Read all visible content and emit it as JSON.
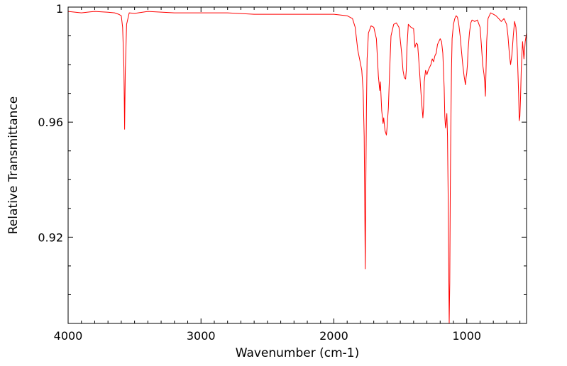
{
  "chart_data": {
    "type": "line",
    "title": "",
    "xlabel": "Wavenumber (cm-1)",
    "ylabel": "Relative Transmittance",
    "xlim": [
      4000,
      550
    ],
    "ylim": [
      0.89,
      1.0
    ],
    "x_reversed": true,
    "grid": false,
    "legend": "none",
    "x_ticks": [
      4000,
      3000,
      2000,
      1000
    ],
    "x_tick_labels": [
      "4000",
      "3000",
      "2000",
      "1000"
    ],
    "y_ticks": [
      1.0,
      0.96,
      0.92
    ],
    "y_tick_labels": [
      "1",
      "0.96",
      "0.92"
    ],
    "series": [
      {
        "color": "#ff0000",
        "x": [
          4000,
          3900,
          3800,
          3700,
          3650,
          3620,
          3600,
          3590,
          3580,
          3575,
          3570,
          3560,
          3540,
          3500,
          3400,
          3200,
          3000,
          2800,
          2600,
          2400,
          2200,
          2000,
          1900,
          1860,
          1840,
          1820,
          1800,
          1790,
          1780,
          1772,
          1768,
          1764,
          1760,
          1755,
          1750,
          1740,
          1720,
          1700,
          1680,
          1665,
          1655,
          1650,
          1640,
          1630,
          1625,
          1615,
          1605,
          1600,
          1590,
          1580,
          1570,
          1550,
          1530,
          1510,
          1490,
          1480,
          1470,
          1460,
          1455,
          1450,
          1440,
          1420,
          1400,
          1390,
          1380,
          1370,
          1360,
          1340,
          1330,
          1325,
          1320,
          1310,
          1300,
          1290,
          1280,
          1270,
          1260,
          1250,
          1240,
          1230,
          1220,
          1210,
          1200,
          1190,
          1180,
          1170,
          1165,
          1160,
          1155,
          1150,
          1145,
          1140,
          1135,
          1132,
          1128,
          1124,
          1120,
          1115,
          1110,
          1100,
          1090,
          1080,
          1070,
          1060,
          1050,
          1040,
          1030,
          1020,
          1010,
          1005,
          1000,
          995,
          990,
          980,
          970,
          960,
          940,
          920,
          900,
          890,
          880,
          870,
          865,
          860,
          855,
          850,
          840,
          820,
          800,
          780,
          760,
          740,
          720,
          700,
          690,
          680,
          670,
          660,
          650,
          640,
          630,
          620,
          610,
          605,
          600,
          595,
          590,
          585,
          580,
          570,
          560,
          550
        ],
        "y": [
          0.9985,
          0.998,
          0.9985,
          0.9982,
          0.998,
          0.9975,
          0.997,
          0.993,
          0.979,
          0.9575,
          0.977,
          0.994,
          0.998,
          0.9978,
          0.9985,
          0.998,
          0.998,
          0.998,
          0.9975,
          0.9975,
          0.9975,
          0.9975,
          0.997,
          0.996,
          0.993,
          0.985,
          0.9805,
          0.978,
          0.971,
          0.955,
          0.935,
          0.909,
          0.935,
          0.965,
          0.982,
          0.991,
          0.9935,
          0.993,
          0.989,
          0.976,
          0.971,
          0.974,
          0.964,
          0.9595,
          0.9615,
          0.957,
          0.9555,
          0.958,
          0.965,
          0.978,
          0.99,
          0.994,
          0.9945,
          0.993,
          0.984,
          0.978,
          0.9755,
          0.975,
          0.978,
          0.986,
          0.994,
          0.993,
          0.9925,
          0.986,
          0.9875,
          0.987,
          0.981,
          0.967,
          0.9615,
          0.965,
          0.974,
          0.978,
          0.9765,
          0.978,
          0.979,
          0.98,
          0.982,
          0.981,
          0.983,
          0.984,
          0.987,
          0.988,
          0.989,
          0.988,
          0.984,
          0.972,
          0.962,
          0.958,
          0.96,
          0.963,
          0.955,
          0.935,
          0.905,
          0.89,
          0.904,
          0.935,
          0.958,
          0.978,
          0.989,
          0.994,
          0.996,
          0.997,
          0.9965,
          0.994,
          0.99,
          0.985,
          0.98,
          0.976,
          0.973,
          0.9755,
          0.977,
          0.98,
          0.985,
          0.991,
          0.9945,
          0.9955,
          0.995,
          0.9955,
          0.993,
          0.987,
          0.98,
          0.9765,
          0.974,
          0.969,
          0.978,
          0.988,
          0.996,
          0.998,
          0.9975,
          0.997,
          0.996,
          0.995,
          0.996,
          0.994,
          0.99,
          0.984,
          0.98,
          0.9835,
          0.99,
          0.995,
          0.993,
          0.985,
          0.97,
          0.9605,
          0.962,
          0.969,
          0.978,
          0.983,
          0.988,
          0.982,
          0.988,
          0.991
        ]
      }
    ]
  }
}
